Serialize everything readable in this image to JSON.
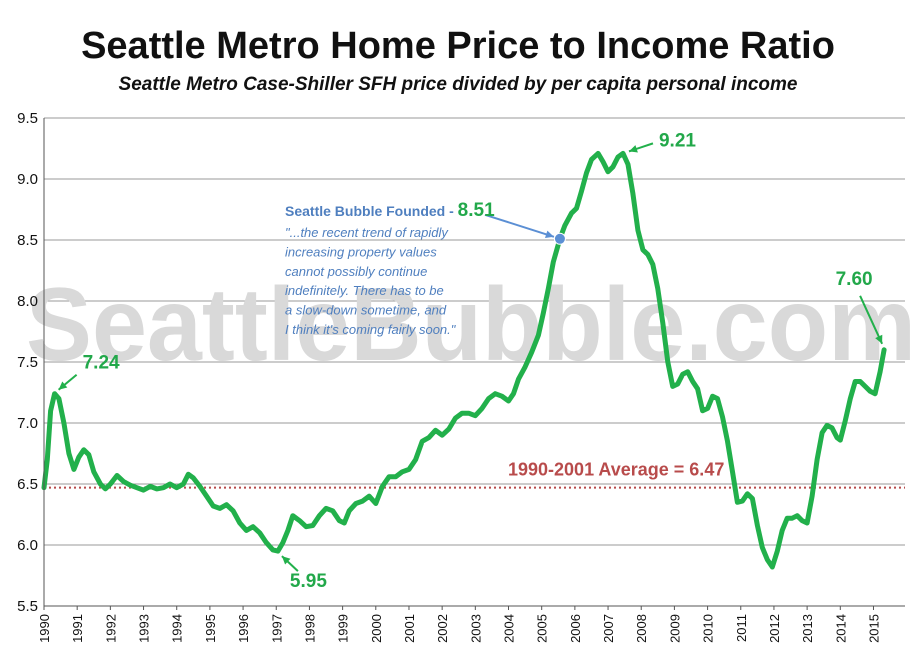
{
  "chart_data": {
    "type": "line",
    "title": "Seattle Metro Home Price to Income Ratio",
    "subtitle": "Seattle Metro Case-Shiller SFH price divided by per capita personal income",
    "watermark": "SeattleBubble.com",
    "xlabel": "",
    "ylabel": "",
    "xlim": [
      1990.0,
      2015.95
    ],
    "ylim": [
      5.5,
      9.5
    ],
    "yticks": [
      "5.5",
      "6.0",
      "6.5",
      "7.0",
      "7.5",
      "8.0",
      "8.5",
      "9.0",
      "9.5"
    ],
    "xticks": [
      "1990",
      "1991",
      "1992",
      "1993",
      "1994",
      "1995",
      "1996",
      "1997",
      "1998",
      "1999",
      "2000",
      "2001",
      "2002",
      "2003",
      "2004",
      "2005",
      "2006",
      "2007",
      "2008",
      "2009",
      "2010",
      "2011",
      "2012",
      "2013",
      "2014",
      "2015"
    ],
    "grid": true,
    "colors": {
      "line": "#22b04b",
      "average": "#b84b4b",
      "marker": "#5b8fd4",
      "grid": "#9a9a9a"
    },
    "series": [
      {
        "values": [
          [
            1990.0,
            6.47
          ],
          [
            1990.1,
            6.7
          ],
          [
            1990.2,
            7.1
          ],
          [
            1990.32,
            7.24
          ],
          [
            1990.45,
            7.2
          ],
          [
            1990.6,
            7.0
          ],
          [
            1990.75,
            6.75
          ],
          [
            1990.9,
            6.62
          ],
          [
            1991.05,
            6.72
          ],
          [
            1991.2,
            6.78
          ],
          [
            1991.35,
            6.74
          ],
          [
            1991.5,
            6.6
          ],
          [
            1991.7,
            6.5
          ],
          [
            1991.85,
            6.46
          ],
          [
            1992.0,
            6.5
          ],
          [
            1992.2,
            6.57
          ],
          [
            1992.4,
            6.52
          ],
          [
            1992.6,
            6.49
          ],
          [
            1992.8,
            6.47
          ],
          [
            1993.0,
            6.45
          ],
          [
            1993.2,
            6.48
          ],
          [
            1993.4,
            6.46
          ],
          [
            1993.6,
            6.47
          ],
          [
            1993.8,
            6.5
          ],
          [
            1994.0,
            6.47
          ],
          [
            1994.2,
            6.5
          ],
          [
            1994.35,
            6.58
          ],
          [
            1994.5,
            6.55
          ],
          [
            1994.7,
            6.48
          ],
          [
            1994.9,
            6.4
          ],
          [
            1995.1,
            6.32
          ],
          [
            1995.3,
            6.3
          ],
          [
            1995.5,
            6.33
          ],
          [
            1995.7,
            6.28
          ],
          [
            1995.9,
            6.18
          ],
          [
            1996.1,
            6.12
          ],
          [
            1996.3,
            6.15
          ],
          [
            1996.5,
            6.1
          ],
          [
            1996.7,
            6.02
          ],
          [
            1996.9,
            5.96
          ],
          [
            1997.05,
            5.95
          ],
          [
            1997.2,
            6.02
          ],
          [
            1997.35,
            6.12
          ],
          [
            1997.5,
            6.24
          ],
          [
            1997.7,
            6.2
          ],
          [
            1997.9,
            6.15
          ],
          [
            1998.1,
            6.16
          ],
          [
            1998.3,
            6.24
          ],
          [
            1998.5,
            6.3
          ],
          [
            1998.7,
            6.28
          ],
          [
            1998.9,
            6.2
          ],
          [
            1999.05,
            6.18
          ],
          [
            1999.2,
            6.28
          ],
          [
            1999.4,
            6.34
          ],
          [
            1999.6,
            6.36
          ],
          [
            1999.8,
            6.4
          ],
          [
            2000.0,
            6.34
          ],
          [
            2000.2,
            6.48
          ],
          [
            2000.4,
            6.56
          ],
          [
            2000.6,
            6.56
          ],
          [
            2000.8,
            6.6
          ],
          [
            2001.0,
            6.62
          ],
          [
            2001.2,
            6.7
          ],
          [
            2001.4,
            6.85
          ],
          [
            2001.6,
            6.88
          ],
          [
            2001.8,
            6.94
          ],
          [
            2002.0,
            6.9
          ],
          [
            2002.2,
            6.95
          ],
          [
            2002.4,
            7.04
          ],
          [
            2002.6,
            7.08
          ],
          [
            2002.8,
            7.08
          ],
          [
            2003.0,
            7.06
          ],
          [
            2003.2,
            7.12
          ],
          [
            2003.4,
            7.2
          ],
          [
            2003.6,
            7.24
          ],
          [
            2003.8,
            7.22
          ],
          [
            2004.0,
            7.18
          ],
          [
            2004.15,
            7.24
          ],
          [
            2004.3,
            7.36
          ],
          [
            2004.5,
            7.46
          ],
          [
            2004.7,
            7.58
          ],
          [
            2004.9,
            7.72
          ],
          [
            2005.05,
            7.9
          ],
          [
            2005.2,
            8.1
          ],
          [
            2005.35,
            8.32
          ],
          [
            2005.55,
            8.51
          ],
          [
            2005.7,
            8.62
          ],
          [
            2005.9,
            8.72
          ],
          [
            2006.05,
            8.76
          ],
          [
            2006.2,
            8.9
          ],
          [
            2006.35,
            9.05
          ],
          [
            2006.5,
            9.16
          ],
          [
            2006.7,
            9.21
          ],
          [
            2006.85,
            9.14
          ],
          [
            2007.0,
            9.06
          ],
          [
            2007.15,
            9.1
          ],
          [
            2007.3,
            9.18
          ],
          [
            2007.45,
            9.21
          ],
          [
            2007.6,
            9.12
          ],
          [
            2007.75,
            8.88
          ],
          [
            2007.9,
            8.58
          ],
          [
            2008.05,
            8.42
          ],
          [
            2008.2,
            8.38
          ],
          [
            2008.35,
            8.3
          ],
          [
            2008.5,
            8.1
          ],
          [
            2008.65,
            7.82
          ],
          [
            2008.8,
            7.5
          ],
          [
            2008.95,
            7.3
          ],
          [
            2009.1,
            7.32
          ],
          [
            2009.25,
            7.4
          ],
          [
            2009.4,
            7.42
          ],
          [
            2009.55,
            7.34
          ],
          [
            2009.7,
            7.28
          ],
          [
            2009.85,
            7.1
          ],
          [
            2010.0,
            7.12
          ],
          [
            2010.15,
            7.22
          ],
          [
            2010.3,
            7.2
          ],
          [
            2010.45,
            7.05
          ],
          [
            2010.6,
            6.85
          ],
          [
            2010.75,
            6.6
          ],
          [
            2010.9,
            6.35
          ],
          [
            2011.05,
            6.36
          ],
          [
            2011.2,
            6.42
          ],
          [
            2011.35,
            6.38
          ],
          [
            2011.5,
            6.16
          ],
          [
            2011.65,
            5.98
          ],
          [
            2011.8,
            5.88
          ],
          [
            2011.95,
            5.82
          ],
          [
            2012.1,
            5.95
          ],
          [
            2012.25,
            6.12
          ],
          [
            2012.4,
            6.22
          ],
          [
            2012.55,
            6.22
          ],
          [
            2012.7,
            6.24
          ],
          [
            2012.85,
            6.2
          ],
          [
            2013.0,
            6.18
          ],
          [
            2013.15,
            6.4
          ],
          [
            2013.3,
            6.7
          ],
          [
            2013.45,
            6.92
          ],
          [
            2013.6,
            6.98
          ],
          [
            2013.75,
            6.96
          ],
          [
            2013.9,
            6.88
          ],
          [
            2014.0,
            6.86
          ],
          [
            2014.15,
            7.02
          ],
          [
            2014.3,
            7.2
          ],
          [
            2014.45,
            7.34
          ],
          [
            2014.6,
            7.34
          ],
          [
            2014.75,
            7.3
          ],
          [
            2014.9,
            7.26
          ],
          [
            2015.05,
            7.24
          ],
          [
            2015.2,
            7.42
          ],
          [
            2015.32,
            7.6
          ]
        ]
      }
    ],
    "average": {
      "label": "1990-2001 Average = 6.47",
      "value": 6.47
    },
    "annotations": [
      {
        "text": "7.24",
        "x": 1990.32,
        "y": 7.24
      },
      {
        "text": "5.95",
        "x": 1997.05,
        "y": 5.95
      },
      {
        "text": "9.21",
        "x": 2007.45,
        "y": 9.21
      },
      {
        "text": "7.60",
        "x": 2015.32,
        "y": 7.6
      }
    ],
    "bubble_note": {
      "heading": "Seattle Bubble Founded - ",
      "value": "8.51",
      "x": 2005.55,
      "y": 8.51,
      "quote_lines": [
        "\"...the recent trend of rapidly",
        "increasing property values",
        "cannot possibly continue",
        "indefinitely.  There has to be",
        "a slow-down sometime, and",
        "I think it's coming fairly soon.\""
      ]
    }
  }
}
